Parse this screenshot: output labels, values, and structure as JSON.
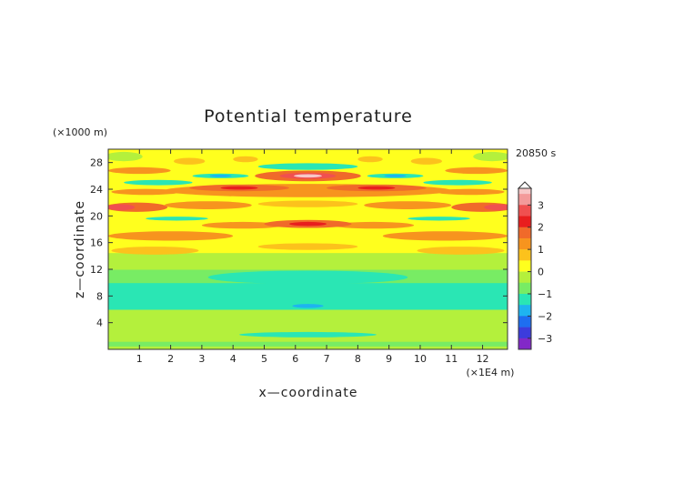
{
  "chart_data": {
    "type": "heatmap",
    "title": "Potential temperature",
    "xlabel": "x—coordinate",
    "ylabel": "z—coordinate",
    "x_unit": "(×1E4 m)",
    "y_unit": "(×1000 m)",
    "time_label": "20850 s",
    "xlim": [
      0,
      12.8
    ],
    "ylim": [
      0,
      30
    ],
    "x_ticks": [
      1,
      2,
      3,
      4,
      5,
      6,
      7,
      8,
      9,
      10,
      11,
      12
    ],
    "y_ticks": [
      4,
      8,
      12,
      16,
      20,
      24,
      28
    ],
    "colorbar": {
      "ticks": [
        3,
        2,
        1,
        0,
        -1,
        -2,
        -3
      ],
      "range": [
        -3.5,
        3.75
      ],
      "levels": [
        {
          "from": 3.5,
          "to": 3.75,
          "color": "#f7c8c8"
        },
        {
          "from": 3.0,
          "to": 3.5,
          "color": "#f39a9a"
        },
        {
          "from": 2.5,
          "to": 3.0,
          "color": "#f05050"
        },
        {
          "from": 2.0,
          "to": 2.5,
          "color": "#e81e1e"
        },
        {
          "from": 1.5,
          "to": 2.0,
          "color": "#f06a2a"
        },
        {
          "from": 1.0,
          "to": 1.5,
          "color": "#f7941e"
        },
        {
          "from": 0.5,
          "to": 1.0,
          "color": "#fcc21c"
        },
        {
          "from": 0.0,
          "to": 0.5,
          "color": "#ffff1e"
        },
        {
          "from": -0.5,
          "to": 0.0,
          "color": "#b4f03c"
        },
        {
          "from": -1.0,
          "to": -0.5,
          "color": "#78ec64"
        },
        {
          "from": -1.5,
          "to": -1.0,
          "color": "#2ae6b4"
        },
        {
          "from": -2.0,
          "to": -1.5,
          "color": "#1eb4f0"
        },
        {
          "from": -2.5,
          "to": -2.0,
          "color": "#1e6ef0"
        },
        {
          "from": -3.0,
          "to": -2.5,
          "color": "#3c3cdc"
        },
        {
          "from": -3.5,
          "to": -3.0,
          "color": "#8228c8"
        }
      ]
    },
    "field": {
      "background": "#78ec64",
      "bands": [
        {
          "z0": 0,
          "z1": 0.5,
          "value": -0.3,
          "color": "#b4f03c"
        },
        {
          "z0": 0.5,
          "z1": 1.2,
          "value": -0.8,
          "color": "#78ec64"
        },
        {
          "z0": 1.2,
          "z1": 6,
          "value": -0.3,
          "color": "#b4f03c"
        },
        {
          "z0": 6,
          "z1": 10,
          "value": -1.2,
          "color": "#2ae6b4"
        },
        {
          "z0": 10,
          "z1": 12,
          "value": -0.8,
          "color": "#78ec64"
        },
        {
          "z0": 12,
          "z1": 14.5,
          "value": -0.3,
          "color": "#b4f03c"
        },
        {
          "z0": 14.5,
          "z1": 30,
          "value": 0.2,
          "color": "#ffff1e"
        }
      ],
      "features": [
        {
          "x": 6.4,
          "z": 10.8,
          "rx": 3.2,
          "rz": 1.0,
          "value": -1.2
        },
        {
          "x": 6.4,
          "z": 2.2,
          "rx": 2.2,
          "rz": 0.4,
          "value": -1.2
        },
        {
          "x": 6.4,
          "z": 6.5,
          "rx": 0.5,
          "rz": 0.3,
          "value": -1.7
        },
        {
          "x": 1.5,
          "z": 14.8,
          "rx": 1.4,
          "rz": 0.6,
          "value": 0.7
        },
        {
          "x": 11.3,
          "z": 14.8,
          "rx": 1.4,
          "rz": 0.6,
          "value": 0.7
        },
        {
          "x": 6.4,
          "z": 15.4,
          "rx": 1.6,
          "rz": 0.5,
          "value": 0.7
        },
        {
          "x": 2.0,
          "z": 17.0,
          "rx": 2.0,
          "rz": 0.7,
          "value": 1.2
        },
        {
          "x": 10.8,
          "z": 17.0,
          "rx": 2.0,
          "rz": 0.7,
          "value": 1.2
        },
        {
          "x": 4.3,
          "z": 18.6,
          "rx": 1.3,
          "rz": 0.5,
          "value": 1.2
        },
        {
          "x": 8.5,
          "z": 18.6,
          "rx": 1.3,
          "rz": 0.5,
          "value": 1.2
        },
        {
          "x": 6.4,
          "z": 18.8,
          "rx": 1.4,
          "rz": 0.6,
          "value": 1.8
        },
        {
          "x": 6.4,
          "z": 18.8,
          "rx": 0.6,
          "rz": 0.3,
          "value": 2.2
        },
        {
          "x": 2.2,
          "z": 19.6,
          "rx": 1.0,
          "rz": 0.3,
          "value": -1.2
        },
        {
          "x": 10.6,
          "z": 19.6,
          "rx": 1.0,
          "rz": 0.3,
          "value": -1.2
        },
        {
          "x": 0.9,
          "z": 21.3,
          "rx": 1.0,
          "rz": 0.7,
          "value": 1.8
        },
        {
          "x": 12.0,
          "z": 21.3,
          "rx": 1.0,
          "rz": 0.7,
          "value": 1.8
        },
        {
          "x": 0.4,
          "z": 21.3,
          "rx": 0.45,
          "rz": 0.45,
          "value": 2.7
        },
        {
          "x": 12.5,
          "z": 21.3,
          "rx": 0.45,
          "rz": 0.45,
          "value": 2.7
        },
        {
          "x": 3.2,
          "z": 21.6,
          "rx": 1.4,
          "rz": 0.6,
          "value": 1.2
        },
        {
          "x": 9.6,
          "z": 21.6,
          "rx": 1.4,
          "rz": 0.6,
          "value": 1.2
        },
        {
          "x": 6.4,
          "z": 21.8,
          "rx": 1.6,
          "rz": 0.5,
          "value": 0.7
        },
        {
          "x": 6.4,
          "z": 23.8,
          "rx": 4.6,
          "rz": 1.0,
          "value": 1.3
        },
        {
          "x": 4.2,
          "z": 24.2,
          "rx": 1.6,
          "rz": 0.5,
          "value": 1.8
        },
        {
          "x": 8.6,
          "z": 24.2,
          "rx": 1.6,
          "rz": 0.5,
          "value": 1.8
        },
        {
          "x": 4.2,
          "z": 24.2,
          "rx": 0.6,
          "rz": 0.25,
          "value": 2.2
        },
        {
          "x": 8.6,
          "z": 24.2,
          "rx": 0.6,
          "rz": 0.25,
          "value": 2.2
        },
        {
          "x": 1.2,
          "z": 23.6,
          "rx": 1.1,
          "rz": 0.45,
          "value": 1.2
        },
        {
          "x": 11.6,
          "z": 23.6,
          "rx": 1.1,
          "rz": 0.45,
          "value": 1.2
        },
        {
          "x": 1.6,
          "z": 25.0,
          "rx": 1.1,
          "rz": 0.4,
          "value": -1.2
        },
        {
          "x": 11.2,
          "z": 25.0,
          "rx": 1.1,
          "rz": 0.4,
          "value": -1.2
        },
        {
          "x": 3.6,
          "z": 26.0,
          "rx": 0.9,
          "rz": 0.35,
          "value": -1.2
        },
        {
          "x": 9.2,
          "z": 26.0,
          "rx": 0.9,
          "rz": 0.35,
          "value": -1.2
        },
        {
          "x": 3.6,
          "z": 26.0,
          "rx": 0.35,
          "rz": 0.2,
          "value": -1.7
        },
        {
          "x": 9.2,
          "z": 26.0,
          "rx": 0.35,
          "rz": 0.2,
          "value": -1.7
        },
        {
          "x": 6.4,
          "z": 26.0,
          "rx": 1.7,
          "rz": 0.8,
          "value": 1.8
        },
        {
          "x": 6.4,
          "z": 26.0,
          "rx": 0.9,
          "rz": 0.45,
          "value": 2.7
        },
        {
          "x": 6.4,
          "z": 26.0,
          "rx": 0.45,
          "rz": 0.25,
          "value": 3.6
        },
        {
          "x": 6.4,
          "z": 27.4,
          "rx": 1.6,
          "rz": 0.5,
          "value": -1.2
        },
        {
          "x": 1.0,
          "z": 26.8,
          "rx": 1.0,
          "rz": 0.5,
          "value": 1.2
        },
        {
          "x": 11.8,
          "z": 26.8,
          "rx": 1.0,
          "rz": 0.5,
          "value": 1.2
        },
        {
          "x": 2.6,
          "z": 28.2,
          "rx": 0.5,
          "rz": 0.5,
          "value": 0.7
        },
        {
          "x": 4.4,
          "z": 28.5,
          "rx": 0.4,
          "rz": 0.45,
          "value": 0.7
        },
        {
          "x": 8.4,
          "z": 28.5,
          "rx": 0.4,
          "rz": 0.45,
          "value": 0.7
        },
        {
          "x": 10.2,
          "z": 28.2,
          "rx": 0.5,
          "rz": 0.5,
          "value": 0.7
        },
        {
          "x": 0.5,
          "z": 28.9,
          "rx": 0.6,
          "rz": 0.7,
          "value": -0.3
        },
        {
          "x": 12.3,
          "z": 28.9,
          "rx": 0.6,
          "rz": 0.7,
          "value": -0.3
        }
      ]
    }
  }
}
